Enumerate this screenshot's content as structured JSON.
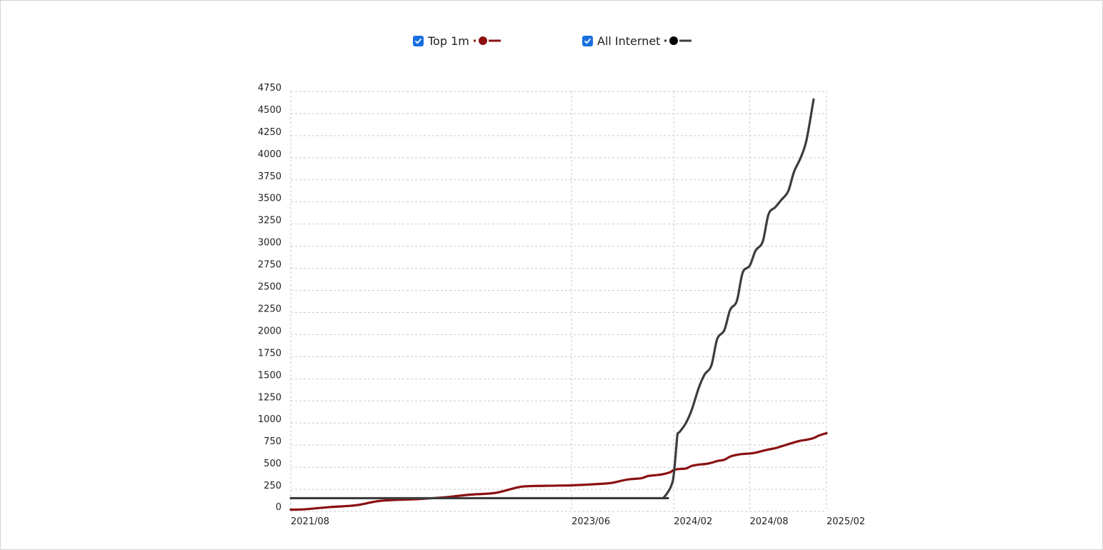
{
  "legend": [
    {
      "label": "Top 1m",
      "checked": true,
      "color": "#8b1010",
      "marker": "dot-line"
    },
    {
      "label": "All Internet",
      "checked": true,
      "color": "#3d3d3d",
      "marker_color": "#000000",
      "marker": "dot-line"
    }
  ],
  "checkbox_color": "#1a6fe0",
  "chart_data": {
    "type": "line",
    "title": "",
    "xlabel": "",
    "ylabel": "",
    "x_range": [
      "2021-07-28",
      "2025-02-01"
    ],
    "x_ticks": [
      {
        "date": "2021-07-28",
        "label": "2021/08"
      },
      {
        "date": "2023-06-01",
        "label": "2023/06"
      },
      {
        "date": "2024-02-01",
        "label": "2024/02"
      },
      {
        "date": "2024-08-01",
        "label": "2024/08"
      },
      {
        "date": "2025-02-01",
        "label": "2025/02"
      }
    ],
    "ylim": [
      0,
      4750
    ],
    "y_ticks": [
      0,
      250,
      500,
      750,
      1000,
      1250,
      1500,
      1750,
      2000,
      2250,
      2500,
      2750,
      3000,
      3250,
      3500,
      3750,
      4000,
      4250,
      4500,
      4750
    ],
    "grid": true,
    "grid_style": "dotted",
    "series": [
      {
        "name": "Top 1m",
        "color": "#8b1010",
        "points": [
          [
            "2021-07-28",
            20
          ],
          [
            "2021-09-01",
            25
          ],
          [
            "2021-11-01",
            50
          ],
          [
            "2022-01-01",
            70
          ],
          [
            "2022-03-01",
            120
          ],
          [
            "2022-06-01",
            140
          ],
          [
            "2022-08-01",
            160
          ],
          [
            "2022-10-01",
            190
          ],
          [
            "2022-12-01",
            210
          ],
          [
            "2023-02-01",
            280
          ],
          [
            "2023-04-01",
            290
          ],
          [
            "2023-06-01",
            295
          ],
          [
            "2023-07-15",
            305
          ],
          [
            "2023-09-01",
            320
          ],
          [
            "2023-10-01",
            350
          ],
          [
            "2023-10-20",
            365
          ],
          [
            "2023-11-15",
            375
          ],
          [
            "2023-12-01",
            400
          ],
          [
            "2023-12-20",
            410
          ],
          [
            "2024-01-05",
            420
          ],
          [
            "2024-01-18",
            435
          ],
          [
            "2024-01-26",
            450
          ],
          [
            "2024-02-01",
            470
          ],
          [
            "2024-02-15",
            480
          ],
          [
            "2024-03-01",
            485
          ],
          [
            "2024-03-15",
            515
          ],
          [
            "2024-04-01",
            530
          ],
          [
            "2024-04-15",
            535
          ],
          [
            "2024-05-01",
            550
          ],
          [
            "2024-05-15",
            570
          ],
          [
            "2024-06-01",
            585
          ],
          [
            "2024-06-15",
            620
          ],
          [
            "2024-07-01",
            640
          ],
          [
            "2024-07-15",
            650
          ],
          [
            "2024-08-01",
            655
          ],
          [
            "2024-08-15",
            665
          ],
          [
            "2024-09-01",
            685
          ],
          [
            "2024-09-15",
            700
          ],
          [
            "2024-10-01",
            715
          ],
          [
            "2024-10-15",
            735
          ],
          [
            "2024-11-01",
            760
          ],
          [
            "2024-11-15",
            780
          ],
          [
            "2024-12-01",
            800
          ],
          [
            "2024-12-15",
            810
          ],
          [
            "2025-01-01",
            830
          ],
          [
            "2025-01-15",
            860
          ],
          [
            "2025-02-01",
            885
          ]
        ]
      },
      {
        "name": "All Internet",
        "color": "#3d3d3d",
        "points": [
          [
            "2021-07-28",
            150
          ],
          [
            "2022-06-01",
            150
          ],
          [
            "2023-01-01",
            150
          ],
          [
            "2023-06-01",
            150
          ],
          [
            "2024-01-01",
            150
          ],
          [
            "2024-01-06",
            150
          ],
          [
            "2024-01-15",
            200
          ],
          [
            "2024-01-25",
            280
          ],
          [
            "2024-02-01",
            420
          ],
          [
            "2024-02-10",
            880
          ],
          [
            "2024-02-15",
            900
          ],
          [
            "2024-03-01",
            1000
          ],
          [
            "2024-03-15",
            1150
          ],
          [
            "2024-04-01",
            1400
          ],
          [
            "2024-04-15",
            1550
          ],
          [
            "2024-05-01",
            1650
          ],
          [
            "2024-05-15",
            1950
          ],
          [
            "2024-06-01",
            2050
          ],
          [
            "2024-06-15",
            2280
          ],
          [
            "2024-07-01",
            2380
          ],
          [
            "2024-07-15",
            2700
          ],
          [
            "2024-08-01",
            2780
          ],
          [
            "2024-08-15",
            2950
          ],
          [
            "2024-09-01",
            3050
          ],
          [
            "2024-09-15",
            3360
          ],
          [
            "2024-10-01",
            3440
          ],
          [
            "2024-10-15",
            3520
          ],
          [
            "2024-11-01",
            3620
          ],
          [
            "2024-11-15",
            3840
          ],
          [
            "2024-12-01",
            4000
          ],
          [
            "2024-12-15",
            4200
          ],
          [
            "2025-01-01",
            4660
          ]
        ]
      }
    ]
  }
}
